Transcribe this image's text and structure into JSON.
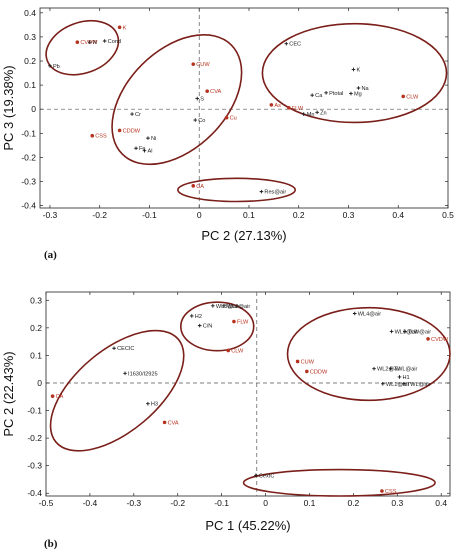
{
  "colors": {
    "black": "#1a1a1a",
    "red": "#b5321f",
    "ellipse": "#7a1f1a"
  },
  "chart_data": [
    {
      "type": "scatter",
      "panel_label": "(a)",
      "xlabel": "PC 2 (27.13%)",
      "ylabel": "PC 3 (19.38%)",
      "xlim": [
        -0.32,
        0.5
      ],
      "ylim": [
        -0.41,
        0.42
      ],
      "xticks": [
        -0.3,
        -0.2,
        -0.1,
        0,
        0.1,
        0.2,
        0.3,
        0.4,
        0.5
      ],
      "xtick_labels": [
        "-0.3",
        "-0.2",
        "-0.1",
        "0",
        "0.1",
        "0.2",
        "0.3",
        "0.4",
        "0.5"
      ],
      "yticks": [
        -0.4,
        -0.3,
        -0.2,
        -0.1,
        0,
        0.1,
        0.2,
        0.3,
        0.4
      ],
      "ytick_labels": [
        "-0.4",
        "-0.3",
        "-0.2",
        "-0.1",
        "0",
        "0.1",
        "0.2",
        "0.3",
        "0.4"
      ],
      "reference_lines": {
        "x": 0,
        "y": 0
      },
      "points": [
        {
          "label": "CVDW",
          "x": -0.245,
          "y": 0.278,
          "color": "red"
        },
        {
          "label": "N",
          "x": -0.22,
          "y": 0.278,
          "color": "black"
        },
        {
          "label": "K",
          "x": -0.16,
          "y": 0.34,
          "color": "red"
        },
        {
          "label": "Cond",
          "x": -0.19,
          "y": 0.283,
          "color": "black"
        },
        {
          "label": "Pb",
          "x": -0.3,
          "y": 0.18,
          "color": "black"
        },
        {
          "label": "CUW",
          "x": -0.012,
          "y": 0.187,
          "color": "red"
        },
        {
          "label": "CVA",
          "x": 0.016,
          "y": 0.075,
          "color": "red"
        },
        {
          "label": "S",
          "x": -0.004,
          "y": 0.044,
          "color": "black"
        },
        {
          "label": "Cr",
          "x": -0.135,
          "y": -0.02,
          "color": "black"
        },
        {
          "label": "Co",
          "x": -0.008,
          "y": -0.045,
          "color": "black"
        },
        {
          "label": "Cu",
          "x": 0.055,
          "y": -0.035,
          "color": "red"
        },
        {
          "label": "CDDW",
          "x": -0.16,
          "y": -0.088,
          "color": "red"
        },
        {
          "label": "CSS",
          "x": -0.215,
          "y": -0.11,
          "color": "red"
        },
        {
          "label": "Ni",
          "x": -0.103,
          "y": -0.12,
          "color": "black"
        },
        {
          "label": "Fe",
          "x": -0.127,
          "y": -0.162,
          "color": "black"
        },
        {
          "label": "Al",
          "x": -0.11,
          "y": -0.172,
          "color": "black"
        },
        {
          "label": "CA",
          "x": -0.012,
          "y": -0.318,
          "color": "red"
        },
        {
          "label": "Res@air",
          "x": 0.125,
          "y": -0.342,
          "color": "black"
        },
        {
          "label": "CEC",
          "x": 0.175,
          "y": 0.272,
          "color": "black"
        },
        {
          "label": "K",
          "x": 0.31,
          "y": 0.165,
          "color": "black"
        },
        {
          "label": "Na",
          "x": 0.32,
          "y": 0.088,
          "color": "black"
        },
        {
          "label": "Mg",
          "x": 0.305,
          "y": 0.065,
          "color": "black"
        },
        {
          "label": "Ptotal",
          "x": 0.255,
          "y": 0.068,
          "color": "black"
        },
        {
          "label": "Ca",
          "x": 0.227,
          "y": 0.058,
          "color": "black"
        },
        {
          "label": "As",
          "x": 0.145,
          "y": 0.018,
          "color": "red"
        },
        {
          "label": "FLW",
          "x": 0.18,
          "y": 0.006,
          "color": "red"
        },
        {
          "label": "Zn",
          "x": 0.237,
          "y": -0.013,
          "color": "black"
        },
        {
          "label": "Mn",
          "x": 0.21,
          "y": -0.02,
          "color": "black"
        },
        {
          "label": "CLW",
          "x": 0.41,
          "y": 0.053,
          "color": "red"
        }
      ],
      "ellipses": [
        {
          "cx": -0.235,
          "cy": 0.255,
          "rx": 0.075,
          "ry": 0.105,
          "rot": -20
        },
        {
          "cx": -0.045,
          "cy": 0.04,
          "rx": 0.155,
          "ry": 0.205,
          "rot": -45
        },
        {
          "cx": 0.312,
          "cy": 0.15,
          "rx": 0.185,
          "ry": 0.205,
          "rot": 0
        },
        {
          "cx": 0.075,
          "cy": -0.335,
          "rx": 0.118,
          "ry": 0.048,
          "rot": 0
        }
      ]
    },
    {
      "type": "scatter",
      "panel_label": "(b)",
      "xlabel": "PC 1 (45.22%)",
      "ylabel": "PC 2 (22.43%)",
      "xlim": [
        -0.5,
        0.42
      ],
      "ylim": [
        -0.41,
        0.33
      ],
      "xticks": [
        -0.5,
        -0.4,
        -0.3,
        -0.2,
        -0.1,
        0,
        0.1,
        0.2,
        0.3,
        0.4
      ],
      "xtick_labels": [
        "-0.5",
        "-0.4",
        "-0.3",
        "-0.2",
        "-0.1",
        "0",
        "0.1",
        "0.2",
        "0.3",
        "0.4"
      ],
      "yticks": [
        -0.4,
        -0.3,
        -0.2,
        -0.1,
        0,
        0.1,
        0.2,
        0.3
      ],
      "ytick_labels": [
        "-0.4",
        "-0.3",
        "-0.2",
        "-0.1",
        "0",
        "0.1",
        "0.2",
        "0.3"
      ],
      "reference_lines": {
        "x": -0.02,
        "y": 0
      },
      "points": [
        {
          "label": "CA",
          "x": -0.485,
          "y": -0.048,
          "color": "red"
        },
        {
          "label": "CECIC",
          "x": -0.345,
          "y": 0.126,
          "color": "black"
        },
        {
          "label": "I1630/I2925",
          "x": -0.32,
          "y": 0.035,
          "color": "black"
        },
        {
          "label": "H3",
          "x": -0.268,
          "y": -0.075,
          "color": "black"
        },
        {
          "label": "CVA",
          "x": -0.23,
          "y": -0.143,
          "color": "red"
        },
        {
          "label": "WL3@air",
          "x": -0.12,
          "y": 0.28,
          "color": "black"
        },
        {
          "label": "WL2@air",
          "x": -0.095,
          "y": 0.28,
          "color": "black"
        },
        {
          "label": "H2",
          "x": -0.168,
          "y": 0.243,
          "color": "black"
        },
        {
          "label": "FLW",
          "x": -0.072,
          "y": 0.223,
          "color": "red"
        },
        {
          "label": "C/N",
          "x": -0.15,
          "y": 0.208,
          "color": "black"
        },
        {
          "label": "CLW",
          "x": -0.085,
          "y": 0.118,
          "color": "red"
        },
        {
          "label": "WL4@air",
          "x": 0.203,
          "y": 0.252,
          "color": "black"
        },
        {
          "label": "WL3@air",
          "x": 0.287,
          "y": 0.187,
          "color": "black"
        },
        {
          "label": "TLW@air",
          "x": 0.317,
          "y": 0.187,
          "color": "black"
        },
        {
          "label": "CVDW",
          "x": 0.37,
          "y": 0.16,
          "color": "red"
        },
        {
          "label": "CUW",
          "x": 0.073,
          "y": 0.078,
          "color": "red"
        },
        {
          "label": "CDDW",
          "x": 0.094,
          "y": 0.042,
          "color": "red"
        },
        {
          "label": "WL2@air",
          "x": 0.247,
          "y": 0.052,
          "color": "black"
        },
        {
          "label": "TWL@air",
          "x": 0.285,
          "y": 0.052,
          "color": "black"
        },
        {
          "label": "H1",
          "x": 0.305,
          "y": 0.022,
          "color": "black"
        },
        {
          "label": "WL1@air",
          "x": 0.267,
          "y": -0.003,
          "color": "black"
        },
        {
          "label": "TWL@air",
          "x": 0.315,
          "y": -0.003,
          "color": "black"
        },
        {
          "label": "CexIC",
          "x": -0.022,
          "y": -0.335,
          "color": "black"
        },
        {
          "label": "CSS",
          "x": 0.265,
          "y": -0.392,
          "color": "red"
        }
      ],
      "ellipses": [
        {
          "cx": -0.338,
          "cy": -0.028,
          "rx": 0.182,
          "ry": 0.148,
          "rot": -40
        },
        {
          "cx": -0.11,
          "cy": 0.205,
          "rx": 0.083,
          "ry": 0.088,
          "rot": 0
        },
        {
          "cx": 0.235,
          "cy": 0.105,
          "rx": 0.185,
          "ry": 0.168,
          "rot": 0
        },
        {
          "cx": 0.168,
          "cy": -0.362,
          "rx": 0.218,
          "ry": 0.048,
          "rot": 0
        }
      ]
    }
  ]
}
